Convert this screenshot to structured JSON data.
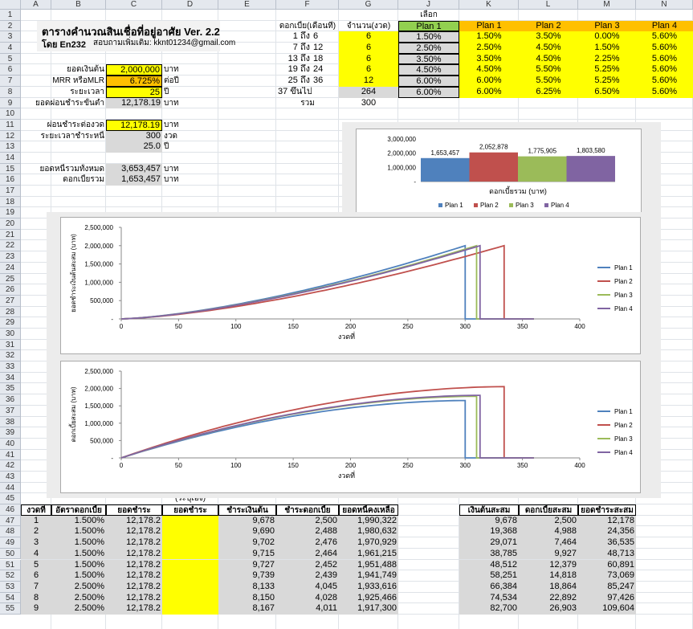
{
  "columns": [
    "A",
    "B",
    "C",
    "D",
    "E",
    "F",
    "G",
    "J",
    "K",
    "L",
    "M",
    "N"
  ],
  "rows": [
    "1",
    "2",
    "3",
    "4",
    "5",
    "6",
    "7",
    "8",
    "9",
    "10",
    "11",
    "12",
    "13",
    "14",
    "15",
    "16",
    "17",
    "18",
    "19",
    "20",
    "21",
    "22",
    "23",
    "24",
    "25",
    "26",
    "27",
    "28",
    "29",
    "30",
    "31",
    "32",
    "33",
    "34",
    "35",
    "36",
    "37",
    "38",
    "39",
    "40",
    "41",
    "42",
    "43",
    "44",
    "45",
    "46",
    "47",
    "48",
    "49",
    "50",
    "51",
    "52",
    "53",
    "54",
    "55"
  ],
  "title": "ตารางคำนวณสินเชื่อที่อยู่อาศัย  Ver. 2.2",
  "author": "โดย En232",
  "contact": "สอบถามเพิ่มเติม:  kknt01234@gmail.com",
  "inputs": [
    {
      "label": "ยอดเงินต้น",
      "value": "2,000,000",
      "unit": "บาท"
    },
    {
      "label": "MRR หรือMLR",
      "value": "6.725%",
      "unit": "ต่อปี"
    },
    {
      "label": "ระยะเวลา",
      "value": "25",
      "unit": "ปี"
    },
    {
      "label": "ยอดผ่อนชำระขั้นต่ำ",
      "value": "12,178.19",
      "unit": "บาท"
    }
  ],
  "outputs": [
    {
      "label": "ผ่อนชำระต่องวด",
      "value": "12,178.19",
      "unit": "บาท"
    },
    {
      "label": "ระยะเวลาชำระหนี้",
      "value": "300",
      "unit": "งวด"
    },
    {
      "label": "",
      "value": "25.0",
      "unit": "ปี"
    },
    {
      "label": "ยอดหนี้รวมทั้งหมด",
      "value": "3,653,457",
      "unit": "บาท"
    },
    {
      "label": "ดอกเบี้ยรวม",
      "value": "1,653,457",
      "unit": "บาท"
    }
  ],
  "rate_table": {
    "select_label": "เลือก",
    "h_period": "ดอกเบี้ย(เดือนที่)",
    "h_count": "จำนวน(งวด)",
    "plans": [
      "Plan 1",
      "Plan 1",
      "Plan 2",
      "Plan 3",
      "Plan 4"
    ],
    "rows": [
      {
        "a": "1 ถึง",
        "b": "6",
        "n": "6",
        "sel": "1.50%",
        "p1": "1.50%",
        "p2": "3.50%",
        "p3": "0.00%",
        "p4": "5.60%"
      },
      {
        "a": "7 ถึง",
        "b": "12",
        "n": "6",
        "sel": "2.50%",
        "p1": "2.50%",
        "p2": "4.50%",
        "p3": "1.50%",
        "p4": "5.60%"
      },
      {
        "a": "13 ถึง",
        "b": "18",
        "n": "6",
        "sel": "3.50%",
        "p1": "3.50%",
        "p2": "4.50%",
        "p3": "2.25%",
        "p4": "5.60%"
      },
      {
        "a": "19 ถึง",
        "b": "24",
        "n": "6",
        "sel": "4.50%",
        "p1": "4.50%",
        "p2": "5.50%",
        "p3": "5.25%",
        "p4": "5.60%"
      },
      {
        "a": "25 ถึง",
        "b": "36",
        "n": "12",
        "sel": "6.00%",
        "p1": "6.00%",
        "p2": "5.50%",
        "p3": "5.25%",
        "p4": "5.60%"
      },
      {
        "a": "37 ขึ้นไป",
        "b": "",
        "n": "264",
        "sel": "6.00%",
        "p1": "6.00%",
        "p2": "6.25%",
        "p3": "6.50%",
        "p4": "5.60%"
      }
    ],
    "total_label": "รวม",
    "total_value": "300"
  },
  "schedule": {
    "note": "(ระบุเอง)",
    "headers": [
      "งวดที่",
      "อัตราดอกเบี้ย",
      "ยอดชำระ",
      "ยอดชำระ",
      "ชำระเงินต้น",
      "ชำระดอกเบี้ย",
      "ยอดหนี้คงเหลือ"
    ],
    "cum_headers": [
      "เงินต้นสะสม",
      "ดอกเบี้ยสะสม",
      "ยอดชำระสะสม"
    ],
    "rows": [
      [
        "1",
        "1.500%",
        "12,178.2",
        "",
        "9,678",
        "2,500",
        "1,990,322",
        "9,678",
        "2,500",
        "12,178"
      ],
      [
        "2",
        "1.500%",
        "12,178.2",
        "",
        "9,690",
        "2,488",
        "1,980,632",
        "19,368",
        "4,988",
        "24,356"
      ],
      [
        "3",
        "1.500%",
        "12,178.2",
        "",
        "9,702",
        "2,476",
        "1,970,929",
        "29,071",
        "7,464",
        "36,535"
      ],
      [
        "4",
        "1.500%",
        "12,178.2",
        "",
        "9,715",
        "2,464",
        "1,961,215",
        "38,785",
        "9,927",
        "48,713"
      ],
      [
        "5",
        "1.500%",
        "12,178.2",
        "",
        "9,727",
        "2,452",
        "1,951,488",
        "48,512",
        "12,379",
        "60,891"
      ],
      [
        "6",
        "1.500%",
        "12,178.2",
        "",
        "9,739",
        "2,439",
        "1,941,749",
        "58,251",
        "14,818",
        "73,069"
      ],
      [
        "7",
        "2.500%",
        "12,178.2",
        "",
        "8,133",
        "4,045",
        "1,933,616",
        "66,384",
        "18,864",
        "85,247"
      ],
      [
        "8",
        "2.500%",
        "12,178.2",
        "",
        "8,150",
        "4,028",
        "1,925,466",
        "74,534",
        "22,892",
        "97,426"
      ],
      [
        "9",
        "2.500%",
        "12,178.2",
        "",
        "8,167",
        "4,011",
        "1,917,300",
        "82,700",
        "26,903",
        "109,604"
      ]
    ]
  },
  "chart_data": [
    {
      "type": "bar",
      "title": "",
      "xlabel": "ดอกเบี้ยรวม  (บาท)",
      "ylabel": "",
      "categories": [
        "Plan 1",
        "Plan 2",
        "Plan 3",
        "Plan 4"
      ],
      "values": [
        1653457,
        2052878,
        1775905,
        1803580
      ],
      "value_labels": [
        "1,653,457",
        "2,052,878",
        "1,775,905",
        "1,803,580"
      ],
      "colors": [
        "#4f81bd",
        "#c0504d",
        "#9bbb59",
        "#8064a2"
      ],
      "ylim": [
        0,
        3000000
      ],
      "yticks": [
        "-",
        "1,000,000",
        "2,000,000",
        "3,000,000"
      ],
      "legend": "bottom"
    },
    {
      "type": "line",
      "title": "",
      "xlabel": "งวดที่",
      "ylabel": "ยอดชำระเงินต้นสะสม (บาท)",
      "xlim": [
        0,
        400
      ],
      "ylim": [
        0,
        2500000
      ],
      "xticks": [
        "0",
        "50",
        "100",
        "150",
        "200",
        "250",
        "300",
        "350",
        "400"
      ],
      "yticks": [
        "-",
        "500,000",
        "1,000,000",
        "1,500,000",
        "2,000,000",
        "2,500,000"
      ],
      "legend": "right",
      "series": [
        {
          "name": "Plan 1",
          "color": "#4f81bd",
          "end": 300,
          "final": 2000000,
          "k": 2.4
        },
        {
          "name": "Plan 2",
          "color": "#c0504d",
          "end": 334,
          "final": 2000000,
          "k": 2.2
        },
        {
          "name": "Plan 3",
          "color": "#9bbb59",
          "end": 310,
          "final": 2000000,
          "k": 2.2
        },
        {
          "name": "Plan 4",
          "color": "#8064a2",
          "end": 313,
          "final": 2000000,
          "k": 2.3
        }
      ]
    },
    {
      "type": "line",
      "title": "",
      "xlabel": "งวดที่",
      "ylabel": "ดอกเบี้ยสะสม (บาท)",
      "xlim": [
        0,
        400
      ],
      "ylim": [
        0,
        2500000
      ],
      "xticks": [
        "0",
        "50",
        "100",
        "150",
        "200",
        "250",
        "300",
        "350",
        "400"
      ],
      "yticks": [
        "-",
        "500,000",
        "1,000,000",
        "1,500,000",
        "2,000,000",
        "2,500,000"
      ],
      "legend": "right",
      "series": [
        {
          "name": "Plan 1",
          "color": "#4f81bd",
          "end": 300,
          "final": 1653457
        },
        {
          "name": "Plan 2",
          "color": "#c0504d",
          "end": 334,
          "final": 2052878
        },
        {
          "name": "Plan 3",
          "color": "#9bbb59",
          "end": 310,
          "final": 1775905
        },
        {
          "name": "Plan 4",
          "color": "#8064a2",
          "end": 313,
          "final": 1803580
        }
      ]
    }
  ]
}
